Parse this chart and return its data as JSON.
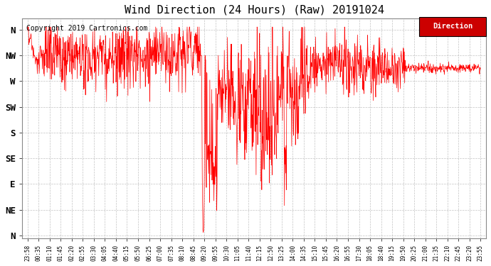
{
  "title": "Wind Direction (24 Hours) (Raw) 20191024",
  "copyright": "Copyright 2019 Cartronics.com",
  "legend_label": "Direction",
  "legend_color": "#ff0000",
  "legend_bg": "#cc0000",
  "line_color": "#ff0000",
  "background_color": "#ffffff",
  "grid_color": "#aaaaaa",
  "ytick_labels": [
    "N",
    "NW",
    "W",
    "SW",
    "S",
    "SE",
    "E",
    "NE",
    "N"
  ],
  "ytick_values": [
    360,
    315,
    270,
    225,
    180,
    135,
    90,
    45,
    0
  ],
  "ylim": [
    -5,
    380
  ],
  "xtick_labels": [
    "23:58",
    "00:35",
    "01:10",
    "01:45",
    "02:20",
    "02:55",
    "03:30",
    "04:05",
    "04:40",
    "05:15",
    "05:50",
    "06:25",
    "07:00",
    "07:35",
    "08:10",
    "08:45",
    "09:20",
    "09:55",
    "10:30",
    "11:05",
    "11:40",
    "12:15",
    "12:50",
    "13:25",
    "14:00",
    "14:35",
    "15:10",
    "15:45",
    "16:20",
    "16:55",
    "17:30",
    "18:05",
    "18:40",
    "19:15",
    "19:50",
    "20:25",
    "21:00",
    "21:35",
    "22:10",
    "22:45",
    "23:20",
    "23:55"
  ]
}
